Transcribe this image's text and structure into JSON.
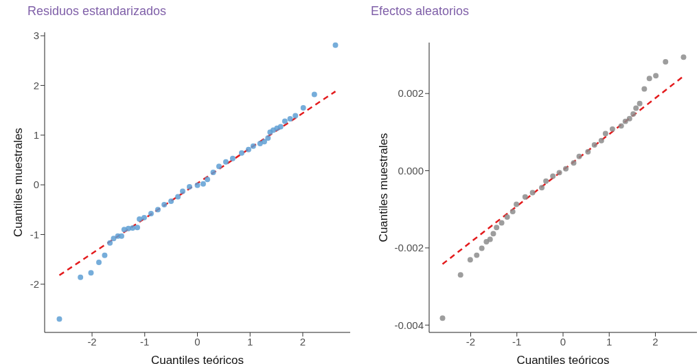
{
  "chart_data": [
    {
      "type": "scatter",
      "title": "Residuos estandarizados",
      "xlabel": "Cuantiles teóricos",
      "ylabel": "Cuantiles muestrales",
      "marker": "circle",
      "grid": false,
      "legend": false,
      "xlim": [
        -2.9,
        2.9
      ],
      "xticks": [
        -2,
        -1,
        0,
        1,
        2
      ],
      "ylim": [
        -2.97,
        3.07
      ],
      "yticks": [
        -2,
        -1,
        0,
        1,
        2,
        3
      ],
      "series": [
        {
          "type": "scatter",
          "color": "#5e9fd4",
          "x": [
            -2.62,
            -2.22,
            -2.02,
            -1.87,
            -1.76,
            -1.66,
            -1.59,
            -1.51,
            -1.44,
            -1.39,
            -1.31,
            -1.23,
            -1.14,
            -1.1,
            -1.01,
            -0.88,
            -0.75,
            -0.63,
            -0.5,
            -0.37,
            -0.28,
            -0.15,
            0,
            0.11,
            0.19,
            0.3,
            0.41,
            0.54,
            0.67,
            0.84,
            0.97,
            1.06,
            1.19,
            1.27,
            1.34,
            1.38,
            1.44,
            1.51,
            1.58,
            1.66,
            1.76,
            1.86,
            2.01,
            2.22,
            2.62
          ],
          "values": [
            -2.7,
            -1.86,
            -1.77,
            -1.56,
            -1.42,
            -1.17,
            -1.08,
            -1.03,
            -1.03,
            -0.9,
            -0.88,
            -0.87,
            -0.86,
            -0.69,
            -0.66,
            -0.58,
            -0.5,
            -0.4,
            -0.33,
            -0.24,
            -0.13,
            -0.04,
            -0.01,
            0.02,
            0.11,
            0.25,
            0.37,
            0.46,
            0.53,
            0.64,
            0.71,
            0.78,
            0.83,
            0.87,
            0.94,
            1.06,
            1.1,
            1.14,
            1.17,
            1.28,
            1.33,
            1.39,
            1.55,
            1.82,
            2.81
          ]
        },
        {
          "type": "line",
          "color": "#e31a1c",
          "line_style": "dashed",
          "marker": "none",
          "x": [
            -2.62,
            2.62
          ],
          "values": [
            -1.82,
            1.88
          ]
        }
      ]
    },
    {
      "type": "scatter",
      "title": "Efectos aleatorios",
      "xlabel": "Cuantiles teóricos",
      "ylabel": "Cuantiles muestrales",
      "marker": "circle",
      "grid": false,
      "legend": false,
      "xlim": [
        -2.9,
        2.9
      ],
      "xticks": [
        -2,
        -1,
        0,
        1,
        2
      ],
      "ylim": [
        -0.00419,
        0.00332
      ],
      "yticks": [
        {
          "value": -0.004,
          "label": "-0.004"
        },
        {
          "value": -0.002,
          "label": "-0.002"
        },
        {
          "value": 0,
          "label": "0.000"
        },
        {
          "value": 0.002,
          "label": "0.002"
        }
      ],
      "series": [
        {
          "type": "scatter",
          "color": "#8c8c8c",
          "x": [
            -2.61,
            -2.22,
            -2.01,
            -1.87,
            -1.76,
            -1.66,
            -1.58,
            -1.51,
            -1.44,
            -1.33,
            -1.21,
            -1.09,
            -1.01,
            -0.82,
            -0.66,
            -0.46,
            -0.37,
            -0.22,
            -0.08,
            0.06,
            0.23,
            0.35,
            0.54,
            0.68,
            0.83,
            0.92,
            1.07,
            1.26,
            1.35,
            1.44,
            1.52,
            1.58,
            1.66,
            1.76,
            1.87,
            2.01,
            2.22,
            2.61
          ],
          "values": [
            -0.00382,
            -0.0027,
            -0.00231,
            -0.00219,
            -0.00201,
            -0.00184,
            -0.00178,
            -0.00163,
            -0.00147,
            -0.00135,
            -0.0012,
            -0.00106,
            -0.00087,
            -0.00068,
            -0.00057,
            -0.00044,
            -0.00027,
            -0.00014,
            -5e-05,
            5e-05,
            0.0002,
            0.00037,
            0.00049,
            0.00067,
            0.00078,
            0.00096,
            0.00108,
            0.00116,
            0.00128,
            0.00135,
            0.00147,
            0.00162,
            0.00174,
            0.00212,
            0.00239,
            0.00246,
            0.00282,
            0.00294
          ]
        },
        {
          "type": "line",
          "color": "#e31a1c",
          "line_style": "dashed",
          "marker": "none",
          "x": [
            -2.61,
            2.61
          ],
          "values": [
            -0.00242,
            0.00245
          ]
        }
      ]
    }
  ]
}
